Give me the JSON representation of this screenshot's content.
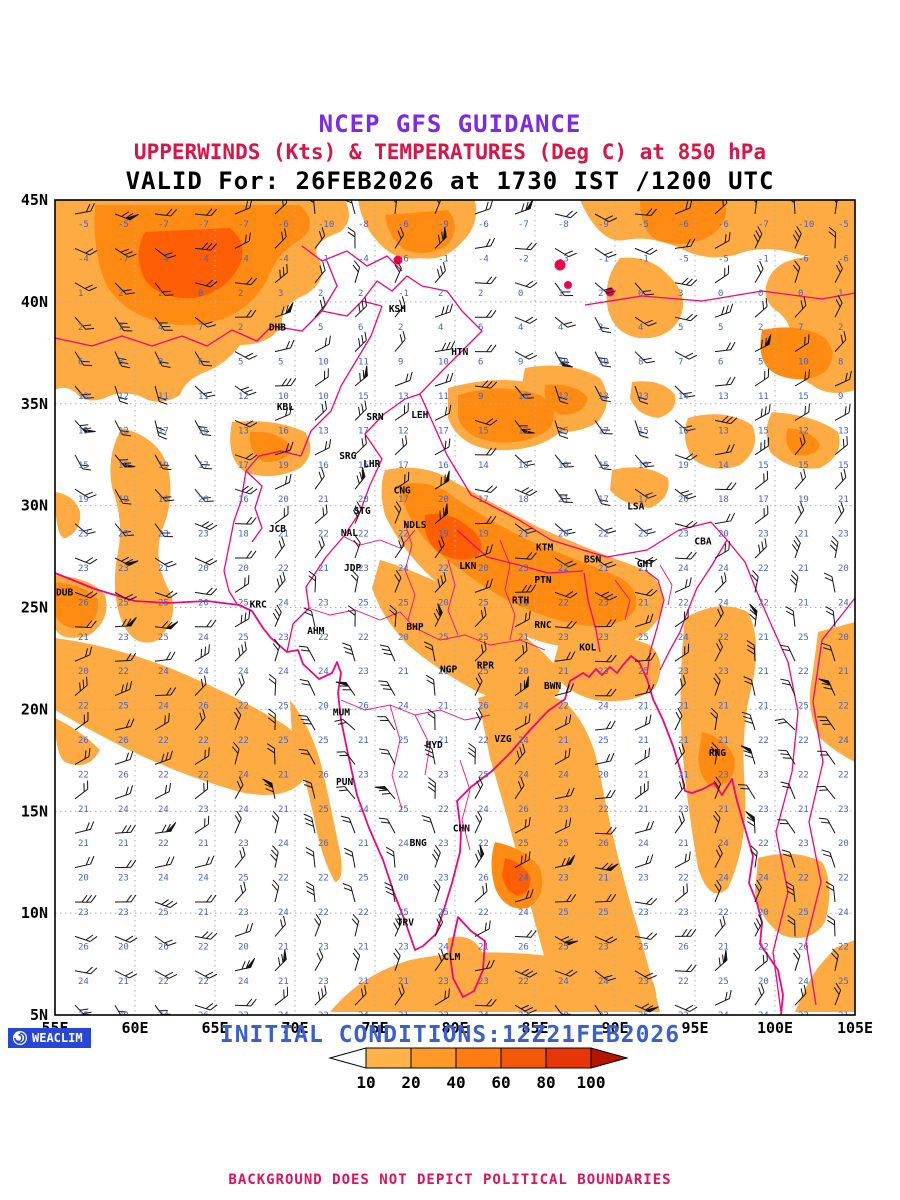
{
  "header": {
    "line1": "NCEP GFS GUIDANCE",
    "line2": "UPPERWINDS (Kts) & TEMPERATURES (Deg C) at 850 hPa",
    "line3": "VALID For: 26FEB2026 at 1730 IST /1200 UTC"
  },
  "footer": {
    "logo": "WEACLIM",
    "initial_conditions": "INITIAL CONDITIONS:12Z21FEB2026",
    "disclaimer": "BACKGROUND DOES NOT DEPICT POLITICAL BOUNDARIES"
  },
  "palette": {
    "title_purple": "#7d2ae8",
    "title_crimson": "#dc1446",
    "footer_blue": "#3a5fd1",
    "disclaimer_pink": "#e0115f",
    "logo_blue": "#2746d8",
    "boundary_pink": "#f4047c",
    "temp_text_blue": "#4663c8",
    "shade_10_20": "#ffab43",
    "shade_20_40": "#ff8b13",
    "shade_40_60": "#ff5f04",
    "shade_60_80": "#e63000"
  },
  "chart_data": {
    "type": "heatmap",
    "title": "NCEP GFS GUIDANCE",
    "subtitle": "UPPERWINDS (Kts) & TEMPERATURES (Deg C) at 850 hPa",
    "valid_time": "26FEB2026 at 1730 IST /1200 UTC",
    "initial_conditions": "12Z21FEB2026",
    "variable": "850 hPa temperature (Deg C, shaded) with wind barbs (Kts)",
    "lon_range": [
      55,
      105
    ],
    "lat_range": [
      5,
      45
    ],
    "lon_ticks": [
      "55E",
      "60E",
      "65E",
      "70E",
      "75E",
      "80E",
      "85E",
      "90E",
      "95E",
      "100E",
      "105E"
    ],
    "lat_ticks": [
      "45N",
      "40N",
      "35N",
      "30N",
      "25N",
      "20N",
      "15N",
      "10N",
      "5N"
    ],
    "grid": "dotted, every 5 degrees",
    "colorbar": {
      "values": [
        "10",
        "20",
        "40",
        "60",
        "80",
        "100"
      ],
      "colors": [
        "#ffb24a",
        "#ff9a28",
        "#ff7c10",
        "#f2570a",
        "#e63606"
      ],
      "arrow_left_color": "#ffffff",
      "arrow_right_color": "#b51500",
      "units": "Deg C"
    },
    "field_summary": "Temps -10 to 3 C across 40-45N, 8-17 C near 35N, 17-23 C over the Indo-Gangetic plain (20-40 C shading band Delhi-Kolkata), 19-24 C over peninsular India and adjacent seas; orange 10-20 C shading over Central Asia, Tibet fringe, Arabian Sea, Bay of Bengal and Myanmar, with 40-60 C-band cores NW and near 81E/13N",
    "stations": [
      {
        "id": "DHB",
        "lon": 68.9,
        "lat": 38.6
      },
      {
        "id": "KSH",
        "lon": 76.4,
        "lat": 39.5
      },
      {
        "id": "HTN",
        "lon": 80.3,
        "lat": 37.4
      },
      {
        "id": "KBL",
        "lon": 69.4,
        "lat": 34.7
      },
      {
        "id": "SRN",
        "lon": 75.0,
        "lat": 34.2
      },
      {
        "id": "LEH",
        "lon": 77.8,
        "lat": 34.3
      },
      {
        "id": "SRG",
        "lon": 73.3,
        "lat": 32.3
      },
      {
        "id": "LHR",
        "lon": 74.8,
        "lat": 31.9
      },
      {
        "id": "CNG",
        "lon": 76.7,
        "lat": 30.6
      },
      {
        "id": "STG",
        "lon": 74.2,
        "lat": 29.6
      },
      {
        "id": "NDLS",
        "lon": 77.5,
        "lat": 28.9
      },
      {
        "id": "JCB",
        "lon": 68.9,
        "lat": 28.7
      },
      {
        "id": "NAL",
        "lon": 73.4,
        "lat": 28.5
      },
      {
        "id": "KTM",
        "lon": 85.6,
        "lat": 27.8
      },
      {
        "id": "LSA",
        "lon": 91.3,
        "lat": 29.8
      },
      {
        "id": "CBA",
        "lon": 95.5,
        "lat": 28.1
      },
      {
        "id": "BSN",
        "lon": 88.6,
        "lat": 27.2
      },
      {
        "id": "GHT",
        "lon": 91.9,
        "lat": 27.0
      },
      {
        "id": "JDP",
        "lon": 73.6,
        "lat": 26.8
      },
      {
        "id": "LKN",
        "lon": 80.8,
        "lat": 26.9
      },
      {
        "id": "PTN",
        "lon": 85.5,
        "lat": 26.2
      },
      {
        "id": "DUB",
        "lon": 55.6,
        "lat": 25.6
      },
      {
        "id": "KRC",
        "lon": 67.7,
        "lat": 25.0
      },
      {
        "id": "RTH",
        "lon": 84.1,
        "lat": 25.2
      },
      {
        "id": "RNC",
        "lon": 85.5,
        "lat": 24.0
      },
      {
        "id": "KOL",
        "lon": 88.3,
        "lat": 22.9
      },
      {
        "id": "AHM",
        "lon": 71.3,
        "lat": 23.7
      },
      {
        "id": "BHP",
        "lon": 77.5,
        "lat": 23.9
      },
      {
        "id": "NGP",
        "lon": 79.6,
        "lat": 21.8
      },
      {
        "id": "RPR",
        "lon": 81.9,
        "lat": 22.0
      },
      {
        "id": "BWN",
        "lon": 86.1,
        "lat": 21.0
      },
      {
        "id": "MUM",
        "lon": 72.9,
        "lat": 19.7
      },
      {
        "id": "HYD",
        "lon": 78.7,
        "lat": 18.1
      },
      {
        "id": "VZG",
        "lon": 83.0,
        "lat": 18.4
      },
      {
        "id": "PUN",
        "lon": 73.1,
        "lat": 16.3
      },
      {
        "id": "RNG",
        "lon": 96.4,
        "lat": 17.7
      },
      {
        "id": "CHN",
        "lon": 80.4,
        "lat": 14.0
      },
      {
        "id": "BNG",
        "lon": 77.7,
        "lat": 13.3
      },
      {
        "id": "TRV",
        "lon": 76.9,
        "lat": 9.4
      },
      {
        "id": "CLM",
        "lon": 79.8,
        "lat": 7.7
      }
    ]
  }
}
